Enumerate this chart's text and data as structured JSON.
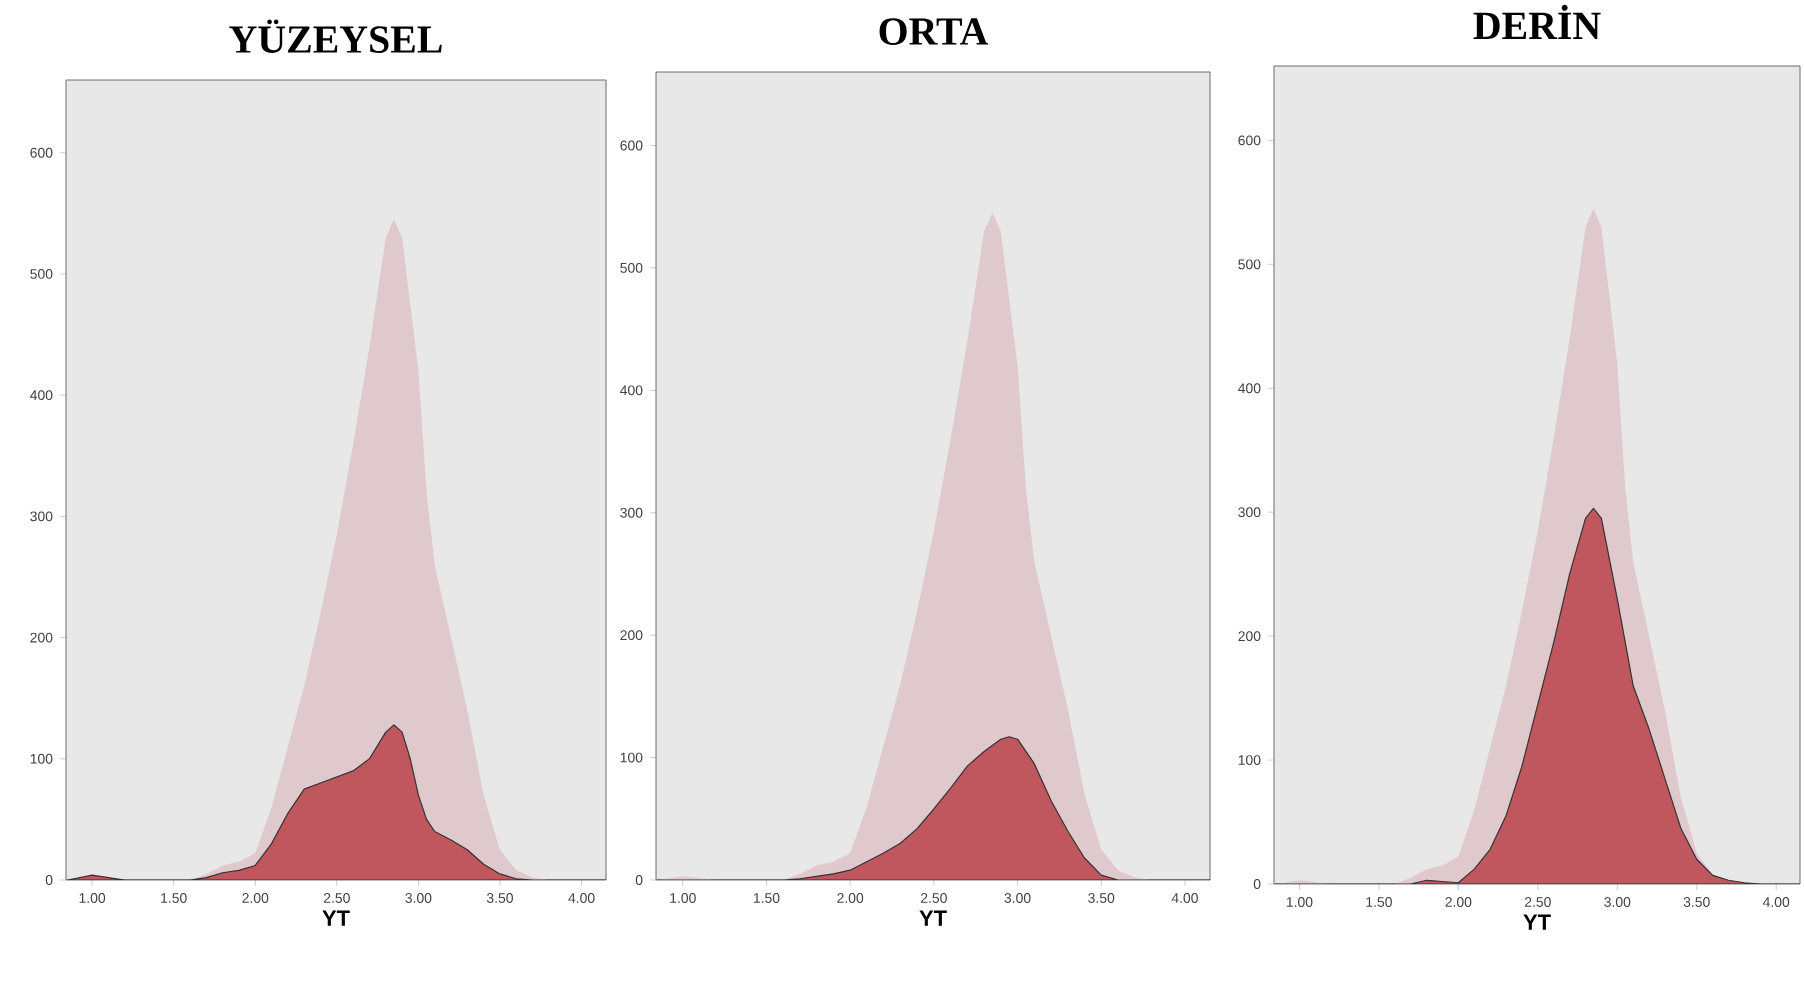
{
  "chart_data": [
    {
      "type": "area",
      "title": "YÜZEYSEL",
      "xlabel": "YT",
      "xlim": [
        0.84,
        4.15
      ],
      "ylim": [
        0,
        660
      ],
      "xticks": [
        {
          "value": 1,
          "label": "1.00"
        },
        {
          "value": 1.5,
          "label": "1.50"
        },
        {
          "value": 2,
          "label": "2.00"
        },
        {
          "value": 2.5,
          "label": "2.50"
        },
        {
          "value": 3,
          "label": "3.00"
        },
        {
          "value": 3.5,
          "label": "3.50"
        },
        {
          "value": 4,
          "label": "4.00"
        }
      ],
      "yticks": [
        0,
        100,
        200,
        300,
        400,
        500,
        600
      ],
      "grid": false,
      "series": [
        {
          "color": "#e0c9cc",
          "x": [
            0.85,
            1.0,
            1.2,
            1.6,
            1.7,
            1.8,
            1.9,
            2.0,
            2.1,
            2.2,
            2.3,
            2.4,
            2.5,
            2.6,
            2.7,
            2.8,
            2.85,
            2.9,
            3.0,
            3.05,
            3.1,
            3.2,
            3.3,
            3.4,
            3.5,
            3.6,
            3.7,
            3.8,
            4.15
          ],
          "values": [
            0,
            3,
            0,
            0,
            5,
            12,
            15,
            22,
            60,
            110,
            160,
            220,
            285,
            360,
            440,
            530,
            545,
            530,
            420,
            320,
            260,
            200,
            140,
            70,
            25,
            8,
            2,
            0,
            0
          ]
        },
        {
          "color": "#c1575e",
          "x": [
            0.85,
            1.0,
            1.1,
            1.2,
            1.6,
            1.7,
            1.8,
            1.9,
            2.0,
            2.1,
            2.2,
            2.3,
            2.4,
            2.5,
            2.6,
            2.7,
            2.8,
            2.85,
            2.9,
            2.95,
            3.0,
            3.05,
            3.1,
            3.2,
            3.3,
            3.4,
            3.5,
            3.6,
            3.7,
            4.15
          ],
          "values": [
            0,
            4,
            2,
            0,
            0,
            2,
            6,
            8,
            12,
            30,
            55,
            75,
            80,
            85,
            90,
            100,
            122,
            128,
            122,
            100,
            70,
            50,
            40,
            33,
            25,
            13,
            5,
            1,
            0,
            0
          ]
        }
      ]
    },
    {
      "type": "area",
      "title": "ORTA",
      "xlabel": "YT",
      "xlim": [
        0.84,
        4.15
      ],
      "ylim": [
        0,
        660
      ],
      "xticks": [
        {
          "value": 1,
          "label": "1.00"
        },
        {
          "value": 1.5,
          "label": "1.50"
        },
        {
          "value": 2,
          "label": "2.00"
        },
        {
          "value": 2.5,
          "label": "2.50"
        },
        {
          "value": 3,
          "label": "3.00"
        },
        {
          "value": 3.5,
          "label": "3.50"
        },
        {
          "value": 4,
          "label": "4.00"
        }
      ],
      "yticks": [
        0,
        100,
        200,
        300,
        400,
        500,
        600
      ],
      "grid": false,
      "series": [
        {
          "color": "#e0c9cc",
          "x": [
            0.85,
            1.0,
            1.2,
            1.6,
            1.7,
            1.8,
            1.9,
            2.0,
            2.1,
            2.2,
            2.3,
            2.4,
            2.5,
            2.6,
            2.7,
            2.8,
            2.85,
            2.9,
            3.0,
            3.05,
            3.1,
            3.2,
            3.3,
            3.4,
            3.5,
            3.6,
            3.7,
            3.8,
            4.15
          ],
          "values": [
            0,
            3,
            0,
            0,
            5,
            12,
            15,
            22,
            60,
            110,
            160,
            220,
            285,
            360,
            440,
            530,
            545,
            530,
            420,
            320,
            260,
            200,
            140,
            70,
            25,
            8,
            2,
            0,
            0
          ]
        },
        {
          "color": "#c1575e",
          "x": [
            0.85,
            1.6,
            1.7,
            1.8,
            1.9,
            2.0,
            2.1,
            2.2,
            2.3,
            2.4,
            2.5,
            2.6,
            2.7,
            2.8,
            2.9,
            2.95,
            3.0,
            3.1,
            3.2,
            3.3,
            3.4,
            3.5,
            3.6,
            4.15
          ],
          "values": [
            0,
            0,
            1,
            3,
            5,
            8,
            15,
            22,
            30,
            42,
            58,
            75,
            93,
            105,
            115,
            117,
            115,
            95,
            65,
            40,
            18,
            4,
            0,
            0
          ]
        }
      ]
    },
    {
      "type": "area",
      "title": "DERİN",
      "xlabel": "YT",
      "xlim": [
        0.84,
        4.15
      ],
      "ylim": [
        0,
        660
      ],
      "xticks": [
        {
          "value": 1,
          "label": "1.00"
        },
        {
          "value": 1.5,
          "label": "1.50"
        },
        {
          "value": 2,
          "label": "2.00"
        },
        {
          "value": 2.5,
          "label": "2.50"
        },
        {
          "value": 3,
          "label": "3.00"
        },
        {
          "value": 3.5,
          "label": "3.50"
        },
        {
          "value": 4,
          "label": "4.00"
        }
      ],
      "yticks": [
        0,
        100,
        200,
        300,
        400,
        500,
        600
      ],
      "grid": false,
      "series": [
        {
          "color": "#e0c9cc",
          "x": [
            0.85,
            1.0,
            1.2,
            1.6,
            1.7,
            1.8,
            1.9,
            2.0,
            2.1,
            2.2,
            2.3,
            2.4,
            2.5,
            2.6,
            2.7,
            2.8,
            2.85,
            2.9,
            3.0,
            3.05,
            3.1,
            3.2,
            3.3,
            3.4,
            3.5,
            3.6,
            3.7,
            3.8,
            4.15
          ],
          "values": [
            0,
            3,
            0,
            0,
            5,
            12,
            15,
            22,
            60,
            110,
            160,
            220,
            285,
            360,
            440,
            530,
            545,
            530,
            420,
            320,
            260,
            200,
            140,
            70,
            25,
            8,
            2,
            0,
            0
          ]
        },
        {
          "color": "#c1575e",
          "x": [
            0.85,
            1.7,
            1.8,
            1.9,
            2.0,
            2.1,
            2.2,
            2.3,
            2.4,
            2.5,
            2.6,
            2.7,
            2.8,
            2.85,
            2.9,
            3.0,
            3.1,
            3.2,
            3.3,
            3.4,
            3.5,
            3.6,
            3.7,
            3.8,
            3.9,
            4.15
          ],
          "values": [
            0,
            0,
            3,
            2,
            1,
            12,
            28,
            55,
            95,
            145,
            195,
            250,
            295,
            303,
            295,
            230,
            160,
            125,
            85,
            45,
            20,
            7,
            3,
            1,
            0,
            0
          ]
        }
      ]
    }
  ]
}
